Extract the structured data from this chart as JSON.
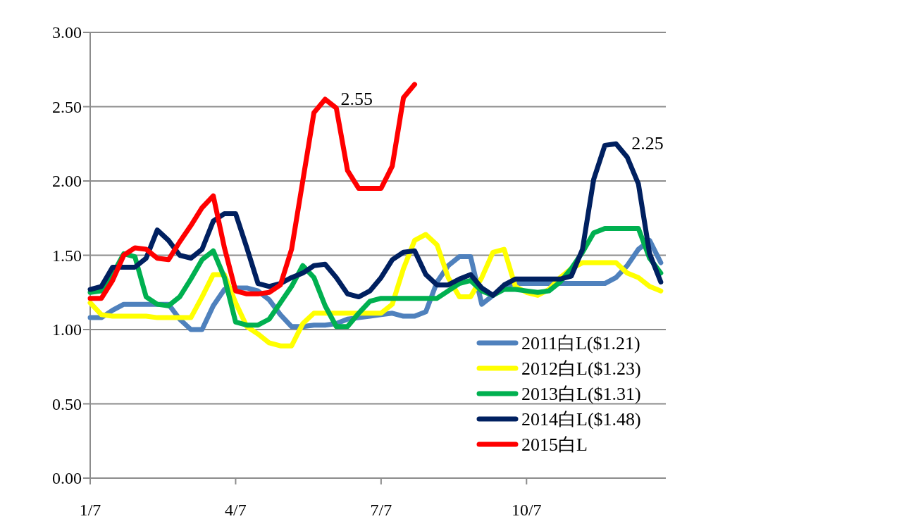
{
  "chart_data": {
    "type": "line",
    "categories": [
      "1/7",
      null,
      null,
      null,
      null,
      null,
      null,
      null,
      null,
      null,
      null,
      null,
      null,
      "4/7",
      null,
      null,
      null,
      null,
      null,
      null,
      null,
      null,
      null,
      null,
      null,
      null,
      "7/7",
      null,
      null,
      null,
      null,
      null,
      null,
      null,
      null,
      null,
      null,
      null,
      null,
      "10/7",
      null,
      null,
      null,
      null,
      null,
      null,
      null,
      null,
      null,
      null,
      null,
      null
    ],
    "series": [
      {
        "name": "2011白L($1.21)",
        "color": "#4f81bd",
        "values": [
          1.08,
          1.08,
          1.13,
          1.17,
          1.17,
          1.17,
          1.17,
          1.17,
          1.07,
          1.0,
          1.0,
          1.16,
          1.27,
          1.28,
          1.28,
          1.26,
          1.2,
          1.1,
          1.02,
          1.02,
          1.03,
          1.03,
          1.04,
          1.07,
          1.08,
          1.09,
          1.1,
          1.11,
          1.09,
          1.09,
          1.12,
          1.32,
          1.43,
          1.49,
          1.49,
          1.17,
          1.23,
          1.29,
          1.31,
          1.31,
          1.31,
          1.31,
          1.31,
          1.31,
          1.31,
          1.31,
          1.31,
          1.35,
          1.43,
          1.54,
          1.6,
          1.45
        ]
      },
      {
        "name": "2012白L($1.23)",
        "color": "#ffff00",
        "values": [
          1.18,
          1.1,
          1.09,
          1.09,
          1.09,
          1.09,
          1.08,
          1.08,
          1.08,
          1.08,
          1.22,
          1.37,
          1.37,
          1.18,
          1.02,
          0.97,
          0.91,
          0.89,
          0.89,
          1.04,
          1.11,
          1.11,
          1.11,
          1.11,
          1.11,
          1.11,
          1.11,
          1.17,
          1.41,
          1.6,
          1.64,
          1.57,
          1.35,
          1.22,
          1.22,
          1.35,
          1.52,
          1.54,
          1.29,
          1.25,
          1.23,
          1.27,
          1.35,
          1.41,
          1.45,
          1.45,
          1.45,
          1.45,
          1.38,
          1.35,
          1.29,
          1.26
        ]
      },
      {
        "name": "2013白L($1.31)",
        "color": "#00b050",
        "values": [
          1.25,
          1.26,
          1.37,
          1.51,
          1.49,
          1.22,
          1.17,
          1.16,
          1.22,
          1.34,
          1.47,
          1.53,
          1.35,
          1.05,
          1.03,
          1.03,
          1.07,
          1.18,
          1.29,
          1.43,
          1.35,
          1.16,
          1.02,
          1.02,
          1.11,
          1.19,
          1.21,
          1.21,
          1.21,
          1.21,
          1.21,
          1.21,
          1.26,
          1.31,
          1.33,
          1.26,
          1.23,
          1.27,
          1.27,
          1.26,
          1.25,
          1.26,
          1.32,
          1.41,
          1.52,
          1.65,
          1.68,
          1.68,
          1.68,
          1.68,
          1.48,
          1.38
        ]
      },
      {
        "name": "2014白L($1.48)",
        "color": "#002060",
        "values": [
          1.27,
          1.29,
          1.42,
          1.42,
          1.42,
          1.48,
          1.67,
          1.6,
          1.5,
          1.48,
          1.54,
          1.73,
          1.78,
          1.78,
          1.55,
          1.31,
          1.29,
          1.31,
          1.35,
          1.38,
          1.43,
          1.44,
          1.35,
          1.24,
          1.22,
          1.26,
          1.35,
          1.47,
          1.52,
          1.53,
          1.37,
          1.3,
          1.3,
          1.34,
          1.37,
          1.28,
          1.23,
          1.3,
          1.34,
          1.34,
          1.34,
          1.34,
          1.34,
          1.36,
          1.54,
          2.01,
          2.24,
          2.25,
          2.16,
          1.98,
          1.51,
          1.32
        ],
        "value_labels": [
          null,
          null,
          null,
          null,
          null,
          null,
          null,
          null,
          null,
          null,
          null,
          null,
          null,
          null,
          null,
          null,
          null,
          null,
          null,
          null,
          null,
          null,
          null,
          null,
          null,
          null,
          null,
          null,
          null,
          null,
          null,
          null,
          null,
          null,
          null,
          null,
          null,
          null,
          null,
          null,
          null,
          null,
          null,
          null,
          null,
          null,
          null,
          "2.25",
          null,
          null,
          null,
          null
        ]
      },
      {
        "name": "2015白L",
        "color": "#ff0000",
        "values": [
          1.21,
          1.21,
          1.33,
          1.5,
          1.55,
          1.54,
          1.48,
          1.47,
          1.59,
          1.7,
          1.82,
          1.9,
          1.55,
          1.26,
          1.24,
          1.24,
          1.25,
          1.3,
          1.54,
          2.0,
          2.46,
          2.55,
          2.49,
          2.07,
          1.95,
          1.95,
          1.95,
          2.1,
          2.56,
          2.65,
          null,
          null,
          null,
          null,
          null,
          null,
          null,
          null,
          null,
          null,
          null,
          null,
          null,
          null,
          null,
          null,
          null,
          null,
          null,
          null,
          null,
          null
        ],
        "value_labels": [
          null,
          null,
          null,
          null,
          null,
          null,
          null,
          null,
          null,
          null,
          null,
          null,
          null,
          null,
          null,
          null,
          null,
          null,
          null,
          null,
          null,
          "2.55",
          null,
          null,
          null,
          null,
          null,
          null,
          null,
          null,
          null,
          null,
          null,
          null,
          null,
          null,
          null,
          null,
          null,
          null,
          null,
          null,
          null,
          null,
          null,
          null,
          null,
          null,
          null,
          null,
          null,
          null
        ]
      }
    ],
    "ylim": [
      0,
      3
    ],
    "yticks": [
      {
        "value": 0,
        "label": "0.00"
      },
      {
        "value": 0.5,
        "label": "0.50"
      },
      {
        "value": 1,
        "label": "1.00"
      },
      {
        "value": 1.5,
        "label": "1.50"
      },
      {
        "value": 2,
        "label": "2.00"
      },
      {
        "value": 2.5,
        "label": "2.50"
      },
      {
        "value": 3,
        "label": "3.00"
      }
    ],
    "grid": "y",
    "legend": "bottom right",
    "line_style": "solid",
    "marker": "none"
  }
}
